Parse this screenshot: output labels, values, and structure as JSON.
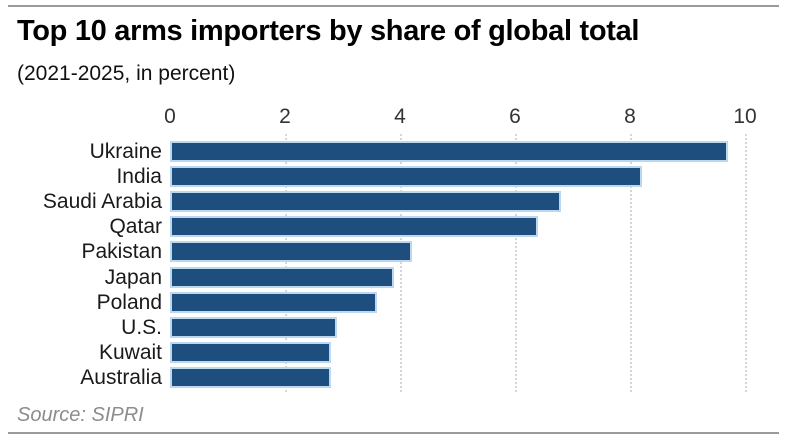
{
  "header": {
    "title": "Top 10 arms importers by share of global total",
    "subtitle": "(2021-2025, in percent)"
  },
  "footer": {
    "source": "Source: SIPRI"
  },
  "theme": {
    "bar-fill": "#1e4e7e",
    "bar-edge": "#bcd8ee",
    "grid": "#d6d6d6",
    "rule": "#9a9a9a",
    "source-color": "#8c8c8c"
  },
  "chart_data": {
    "type": "bar",
    "orientation": "horizontal",
    "title": "Top 10 arms importers by share of global total",
    "subtitle": "(2021-2025, in percent)",
    "xlabel": "",
    "ylabel": "",
    "xlim": [
      0,
      10
    ],
    "x_ticks": [
      0,
      2,
      4,
      6,
      8,
      10
    ],
    "axis_position": "top",
    "grid": "dotted-vertical",
    "legend": "none",
    "categories": [
      "Ukraine",
      "India",
      "Saudi Arabia",
      "Qatar",
      "Pakistan",
      "Japan",
      "Poland",
      "U.S.",
      "Kuwait",
      "Australia"
    ],
    "values": [
      9.7,
      8.2,
      6.8,
      6.4,
      4.2,
      3.9,
      3.6,
      2.9,
      2.8,
      2.8
    ],
    "unit": "percent",
    "source": "SIPRI"
  }
}
